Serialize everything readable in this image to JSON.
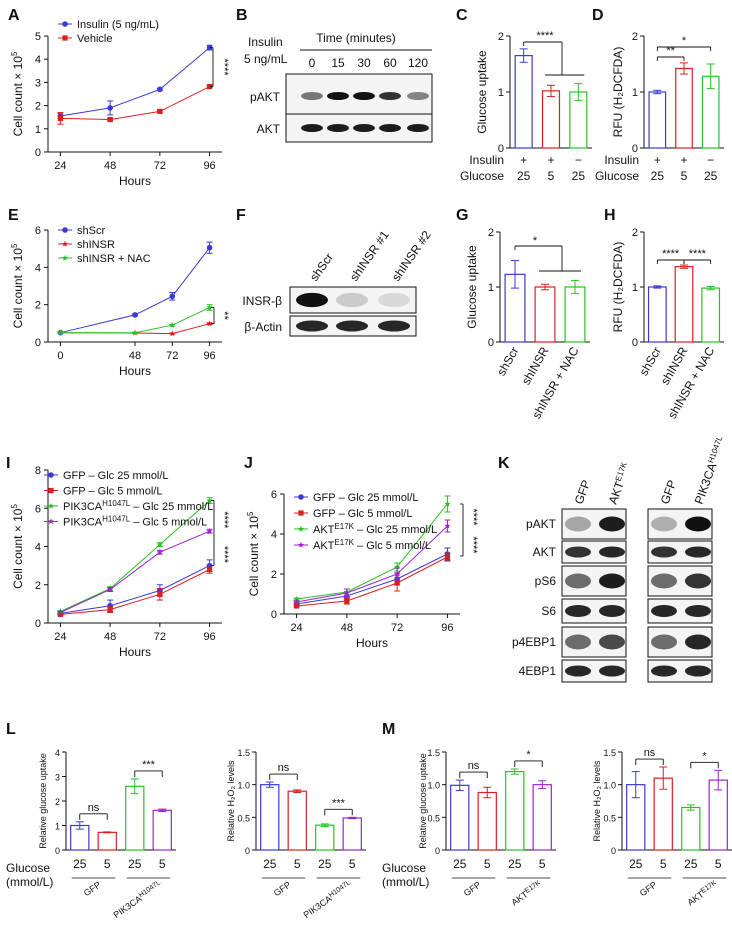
{
  "colors": {
    "blue": "#3a3ad6",
    "red": "#d82020",
    "green": "#27c227",
    "purple": "#a020d0",
    "black": "#111111"
  },
  "panels": {
    "A": {
      "label": "A",
      "type": "line",
      "xlabel": "Hours",
      "ylabel": "Cell count × 10",
      "ylabel_sup": "5",
      "x": [
        24,
        48,
        72,
        96
      ],
      "ylim": [
        0,
        5
      ],
      "xlim": [
        18,
        102
      ],
      "yticks": [
        "0",
        "1",
        "2",
        "3",
        "4",
        "5"
      ],
      "series": [
        {
          "name": "Insulin (5 ng/mL)",
          "color": "blue",
          "marker": "circle",
          "values": [
            1.55,
            1.9,
            2.7,
            4.5
          ],
          "err": [
            0.1,
            0.3,
            0.05,
            0.1
          ]
        },
        {
          "name": "Vehicle",
          "color": "red",
          "marker": "square",
          "values": [
            1.45,
            1.4,
            1.75,
            2.82
          ],
          "err": [
            0.25,
            0.05,
            0.05,
            0.05
          ]
        }
      ],
      "sig": "****"
    },
    "B": {
      "label": "B",
      "title_top": "Time (minutes)",
      "treatment": "Insulin",
      "treatment_sub": "5 ng/mL",
      "lanes": [
        "0",
        "15",
        "30",
        "60",
        "120"
      ],
      "blots": [
        {
          "name": "pAKT",
          "intensity": [
            0.55,
            1.0,
            1.0,
            0.85,
            0.5
          ]
        },
        {
          "name": "AKT",
          "intensity": [
            0.95,
            0.95,
            0.95,
            0.95,
            0.95
          ]
        }
      ]
    },
    "C": {
      "label": "C",
      "type": "bar",
      "ylabel": "Glucose uptake",
      "ylim": [
        0,
        2
      ],
      "yticks": [
        "0",
        "1",
        "2"
      ],
      "bars": [
        {
          "value": 1.65,
          "err": 0.12,
          "color": "blue"
        },
        {
          "value": 1.02,
          "err": 0.1,
          "color": "red"
        },
        {
          "value": 1.0,
          "err": 0.15,
          "color": "green"
        }
      ],
      "rows": [
        {
          "name": "Insulin",
          "vals": [
            "+",
            "+",
            "−"
          ]
        },
        {
          "name": "Glucose",
          "vals": [
            "25",
            "5",
            "25"
          ]
        }
      ],
      "sig": "****"
    },
    "D": {
      "label": "D",
      "type": "bar",
      "ylabel": "RFU (H₂DCFDA)",
      "ylim": [
        0,
        2
      ],
      "yticks": [
        "0",
        "1",
        "2"
      ],
      "bars": [
        {
          "value": 1.0,
          "err": 0.03,
          "color": "blue"
        },
        {
          "value": 1.42,
          "err": 0.1,
          "color": "red"
        },
        {
          "value": 1.28,
          "err": 0.22,
          "color": "green"
        }
      ],
      "rows": [
        {
          "name": "Insulin",
          "vals": [
            "+",
            "+",
            "−"
          ]
        },
        {
          "name": "Glucose",
          "vals": [
            "25",
            "5",
            "25"
          ]
        }
      ],
      "sig1": "**",
      "sig2": "*"
    },
    "E": {
      "label": "E",
      "type": "line",
      "xlabel": "Hours",
      "ylabel": "Cell count × 10",
      "ylabel_sup": "5",
      "x": [
        0,
        48,
        72,
        96
      ],
      "ylim": [
        0,
        6
      ],
      "xlim": [
        -8,
        104
      ],
      "yticks": [
        "0",
        "2",
        "4",
        "6"
      ],
      "series": [
        {
          "name": "shScr",
          "color": "blue",
          "marker": "circle",
          "values": [
            0.5,
            1.45,
            2.45,
            5.05
          ],
          "err": [
            0.03,
            0.05,
            0.2,
            0.3
          ]
        },
        {
          "name": "shINSR",
          "color": "red",
          "marker": "star",
          "values": [
            0.5,
            0.48,
            0.45,
            0.98
          ],
          "err": [
            0.02,
            0.02,
            0.02,
            0.05
          ]
        },
        {
          "name": "shINSR + NAC",
          "color": "green",
          "marker": "star",
          "values": [
            0.5,
            0.5,
            0.9,
            1.85
          ],
          "err": [
            0.02,
            0.02,
            0.05,
            0.15
          ]
        }
      ],
      "sig": "**"
    },
    "F": {
      "label": "F",
      "lanes": [
        "shScr",
        "shINSR #1",
        "shINSR #2"
      ],
      "blots": [
        {
          "name": "INSR-β",
          "intensity": [
            1.0,
            0.18,
            0.12
          ]
        },
        {
          "name": "β-Actin",
          "intensity": [
            0.9,
            0.9,
            0.9
          ]
        }
      ]
    },
    "G": {
      "label": "G",
      "type": "bar",
      "ylabel": "Glucose uptake",
      "ylim": [
        0,
        2
      ],
      "yticks": [
        "0",
        "1",
        "2"
      ],
      "categories": [
        "shScr",
        "shINSR",
        "shINSR + NAC"
      ],
      "bars": [
        {
          "value": 1.23,
          "err": 0.25,
          "color": "blue"
        },
        {
          "value": 1.0,
          "err": 0.05,
          "color": "red"
        },
        {
          "value": 1.0,
          "err": 0.12,
          "color": "green"
        }
      ],
      "sig": "*"
    },
    "H": {
      "label": "H",
      "type": "bar",
      "ylabel": "RFU (H₂DCFDA)",
      "ylim": [
        0,
        2
      ],
      "yticks": [
        "0",
        "1",
        "2"
      ],
      "categories": [
        "shScr",
        "shINSR",
        "shINSR + NAC"
      ],
      "bars": [
        {
          "value": 1.0,
          "err": 0.02,
          "color": "blue"
        },
        {
          "value": 1.37,
          "err": 0.03,
          "color": "red"
        },
        {
          "value": 0.98,
          "err": 0.03,
          "color": "green"
        }
      ],
      "sig1": "****",
      "sig2": "****"
    },
    "I": {
      "label": "I",
      "type": "line",
      "xlabel": "Hours",
      "ylabel": "Cell count × 10",
      "ylabel_sup": "5",
      "x": [
        24,
        48,
        72,
        96
      ],
      "ylim": [
        0,
        8
      ],
      "xlim": [
        18,
        102
      ],
      "yticks": [
        "0",
        "2",
        "4",
        "6",
        "8"
      ],
      "series": [
        {
          "name": "GFP – Glc 25 mmol/L",
          "color": "blue",
          "marker": "circle",
          "values": [
            0.5,
            0.9,
            1.7,
            3.0
          ],
          "err": [
            0.05,
            0.3,
            0.3,
            0.3
          ]
        },
        {
          "name": "GFP – Glc 5 mmol/L",
          "color": "red",
          "marker": "square",
          "values": [
            0.45,
            0.7,
            1.5,
            2.8
          ],
          "err": [
            0.05,
            0.15,
            0.3,
            0.2
          ]
        },
        {
          "name": "PIK3CAH1047L – Glc 25 mmol/L",
          "color": "green",
          "marker": "star",
          "values": [
            0.6,
            1.8,
            4.1,
            6.4
          ],
          "err": [
            0.05,
            0.1,
            0.1,
            0.15
          ]
        },
        {
          "name": "PIK3CAH1047L – Glc 5 mmol/L",
          "color": "purple",
          "marker": "star",
          "values": [
            0.55,
            1.75,
            3.7,
            4.8
          ],
          "err": [
            0.05,
            0.1,
            0.1,
            0.1
          ]
        }
      ],
      "sig1": "****",
      "sig2": "****"
    },
    "J": {
      "label": "J",
      "type": "line",
      "xlabel": "Hours",
      "ylabel": "Cell count × 10",
      "ylabel_sup": "5",
      "x": [
        24,
        48,
        72,
        96
      ],
      "ylim": [
        0,
        6
      ],
      "xlim": [
        18,
        102
      ],
      "yticks": [
        "0",
        "2",
        "4",
        "6"
      ],
      "series": [
        {
          "name": "GFP – Glc 25 mmol/L",
          "color": "blue",
          "marker": "circle",
          "values": [
            0.5,
            0.9,
            1.75,
            3.0
          ],
          "err": [
            0.05,
            0.2,
            0.3,
            0.3
          ]
        },
        {
          "name": "GFP – Glc 5 mmol/L",
          "color": "red",
          "marker": "square",
          "values": [
            0.4,
            0.65,
            1.55,
            2.85
          ],
          "err": [
            0.05,
            0.15,
            0.4,
            0.2
          ]
        },
        {
          "name": "AKTE17K – Glc 25 mmol/L",
          "color": "green",
          "marker": "star",
          "values": [
            0.75,
            1.1,
            2.35,
            5.5
          ],
          "err": [
            0.05,
            0.15,
            0.2,
            0.4
          ]
        },
        {
          "name": "AKTE17K – Glc 5 mmol/L",
          "color": "purple",
          "marker": "star",
          "values": [
            0.6,
            1.05,
            2.0,
            4.4
          ],
          "err": [
            0.05,
            0.2,
            0.3,
            0.3
          ]
        }
      ],
      "sig1": "****",
      "sig2": "****"
    },
    "K": {
      "label": "K",
      "lanes": [
        "GFP",
        "AKT",
        "GFP",
        "PIK3CA"
      ],
      "blots": [
        {
          "name": "pAKT",
          "intensity": [
            0.35,
            0.95,
            0.3,
            1.0
          ]
        },
        {
          "name": "AKT",
          "intensity": [
            0.85,
            0.9,
            0.85,
            0.9
          ]
        },
        {
          "name": "pS6",
          "intensity": [
            0.6,
            0.95,
            0.6,
            0.85
          ]
        },
        {
          "name": "S6",
          "intensity": [
            0.9,
            0.9,
            0.9,
            0.9
          ]
        },
        {
          "name": "p4EBP1",
          "intensity": [
            0.6,
            0.75,
            0.6,
            0.9
          ]
        },
        {
          "name": "4EBP1",
          "intensity": [
            0.9,
            0.9,
            0.9,
            0.9
          ]
        }
      ]
    },
    "L": {
      "label": "L",
      "left": {
        "ylabel": "Relative glucose uptake",
        "ylim": [
          0,
          4
        ],
        "yticks": [
          "0",
          "1",
          "2",
          "3",
          "4"
        ],
        "bars": [
          {
            "value": 1.0,
            "err": 0.15,
            "color": "blue"
          },
          {
            "value": 0.72,
            "err": 0.02,
            "color": "red"
          },
          {
            "value": 2.6,
            "err": 0.3,
            "color": "green"
          },
          {
            "value": 1.62,
            "err": 0.05,
            "color": "purple"
          }
        ],
        "sig1": "ns",
        "sig2": "***"
      },
      "right": {
        "ylabel": "Relative H₂O₂ levels",
        "ylim": [
          0,
          1.5
        ],
        "yticks": [
          "0",
          "0.5",
          "1.0",
          "1.5"
        ],
        "bars": [
          {
            "value": 1.0,
            "err": 0.04,
            "color": "blue"
          },
          {
            "value": 0.9,
            "err": 0.02,
            "color": "red"
          },
          {
            "value": 0.38,
            "err": 0.02,
            "color": "green"
          },
          {
            "value": 0.49,
            "err": 0.01,
            "color": "purple"
          }
        ],
        "sig1": "ns",
        "sig2": "***"
      },
      "glucose_label": "Glucose",
      "glucose_unit": "(mmol/L)",
      "doses": [
        "25",
        "5",
        "25",
        "5"
      ],
      "group1": "GFP",
      "group2": "PIK3CA",
      "group2_sup": "H1047L"
    },
    "M": {
      "label": "M",
      "left": {
        "ylabel": "Relative glucose uptake",
        "ylim": [
          0,
          1.5
        ],
        "yticks": [
          "0",
          "0.5",
          "1.0",
          "1.5"
        ],
        "bars": [
          {
            "value": 0.99,
            "err": 0.08,
            "color": "blue"
          },
          {
            "value": 0.88,
            "err": 0.08,
            "color": "red"
          },
          {
            "value": 1.2,
            "err": 0.04,
            "color": "green"
          },
          {
            "value": 1.0,
            "err": 0.06,
            "color": "purple"
          }
        ],
        "sig1": "ns",
        "sig2": "*"
      },
      "right": {
        "ylabel": "Relative H₂O₂ levels",
        "ylim": [
          0,
          1.5
        ],
        "yticks": [
          "0",
          "0.5",
          "1.0",
          "1.5"
        ],
        "bars": [
          {
            "value": 1.0,
            "err": 0.2,
            "color": "blue"
          },
          {
            "value": 1.1,
            "err": 0.17,
            "color": "red"
          },
          {
            "value": 0.65,
            "err": 0.04,
            "color": "green"
          },
          {
            "value": 1.07,
            "err": 0.15,
            "color": "purple"
          }
        ],
        "sig1": "ns",
        "sig2": "*"
      },
      "glucose_label": "Glucose",
      "glucose_unit": "(mmol/L)",
      "doses": [
        "25",
        "5",
        "25",
        "5"
      ],
      "group1": "GFP",
      "group2": "AKT",
      "group2_sup": "E17K"
    },
    "K_sups": {
      "akt": "E17K",
      "pik": "H1047L"
    },
    "I_leg_sup": "H1047L",
    "J_leg_sup": "E17K"
  }
}
